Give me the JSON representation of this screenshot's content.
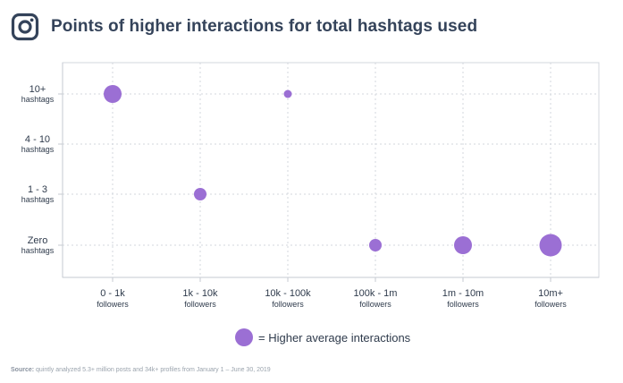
{
  "header": {
    "icon": "instagram-icon",
    "title": "Points of higher interactions for total hashtags used"
  },
  "chart_data": {
    "type": "scatter",
    "title": "Points of higher interactions for total hashtags used",
    "x_categories": [
      {
        "main": "0 - 1k",
        "sub": "followers"
      },
      {
        "main": "1k - 10k",
        "sub": "followers"
      },
      {
        "main": "10k - 100k",
        "sub": "followers"
      },
      {
        "main": "100k - 1m",
        "sub": "followers"
      },
      {
        "main": "1m - 10m",
        "sub": "followers"
      },
      {
        "main": "10m+",
        "sub": "followers"
      }
    ],
    "y_categories": [
      {
        "main": "Zero",
        "sub": "hashtags"
      },
      {
        "main": "1 - 3",
        "sub": "hashtags"
      },
      {
        "main": "4 - 10",
        "sub": "hashtags"
      },
      {
        "main": "10+",
        "sub": "hashtags"
      }
    ],
    "points": [
      {
        "x": "0 - 1k",
        "y": "10+",
        "size": 3
      },
      {
        "x": "1k - 10k",
        "y": "1 - 3",
        "size": 2
      },
      {
        "x": "10k - 100k",
        "y": "10+",
        "size": 1
      },
      {
        "x": "100k - 1m",
        "y": "Zero",
        "size": 2
      },
      {
        "x": "1m - 10m",
        "y": "Zero",
        "size": 3
      },
      {
        "x": "10m+",
        "y": "Zero",
        "size": 4
      }
    ],
    "grid": true,
    "colors": {
      "point": "#9b6fd4",
      "grid": "#d3d7dd",
      "axis": "#c5cad1"
    }
  },
  "legend": {
    "label": "= Higher average interactions"
  },
  "footer": {
    "source_label": "Source:",
    "source_text": "quintly analyzed 5.3+ million posts and 34k+ profiles from January 1 – June 30, 2019"
  }
}
